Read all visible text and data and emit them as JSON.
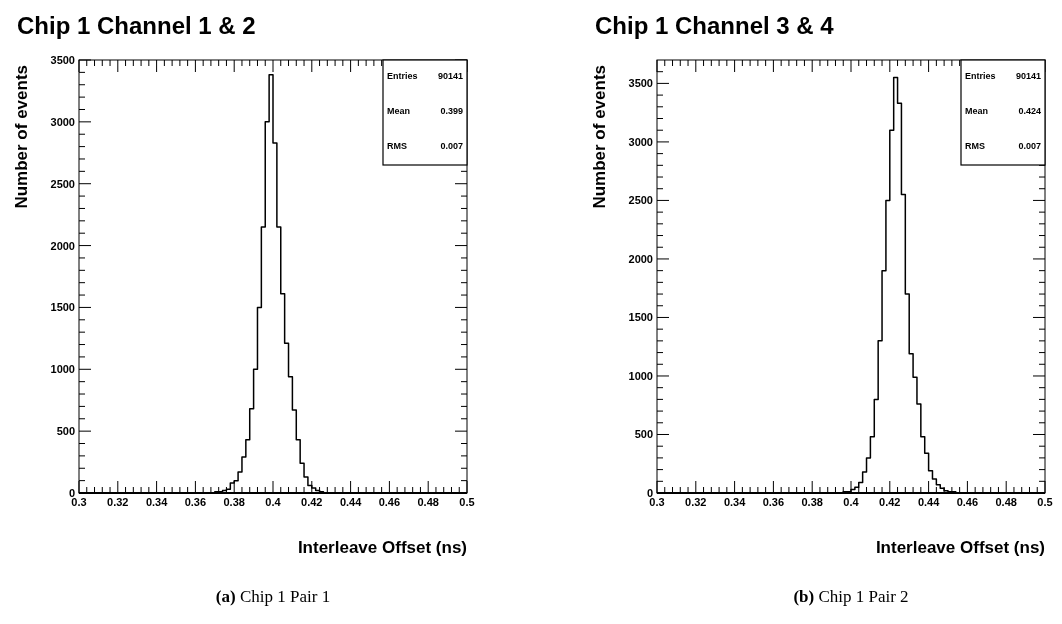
{
  "chart_data": [
    {
      "type": "histogram",
      "title": "Chip 1 Channel 1 & 2",
      "xlabel": "Interleave Offset (ns)",
      "ylabel": "Number of events",
      "color": "#000000",
      "bins": [
        0.366,
        0.368,
        0.37,
        0.372,
        0.374,
        0.376,
        0.378,
        0.38,
        0.382,
        0.384,
        0.386,
        0.388,
        0.39,
        0.392,
        0.394,
        0.396,
        0.398,
        0.4,
        0.402,
        0.404,
        0.406,
        0.408,
        0.41,
        0.412,
        0.414,
        0.416,
        0.418,
        0.42,
        0.422,
        0.424,
        0.426,
        0.428,
        0.43
      ],
      "values": [
        0,
        0,
        10,
        10,
        20,
        30,
        80,
        100,
        170,
        290,
        430,
        680,
        1000,
        1500,
        2150,
        3000,
        3380,
        2830,
        2150,
        1610,
        1210,
        940,
        670,
        430,
        240,
        130,
        60,
        40,
        20,
        10,
        0,
        0
      ],
      "xlim": [
        0.3,
        0.5
      ],
      "ylim": [
        0,
        3500
      ],
      "xticks": [
        0.3,
        0.32,
        0.34,
        0.36,
        0.38,
        0.4,
        0.42,
        0.44,
        0.46,
        0.48,
        0.5
      ],
      "yticks": [
        0,
        500,
        1000,
        1500,
        2000,
        2500,
        3000,
        3500
      ],
      "annotations": [
        "Entries",
        "90141",
        "Mean",
        "0.399",
        "RMS",
        "0.007",
        "(a) Chip 1 Pair 1"
      ]
    },
    {
      "type": "histogram",
      "title": "Chip 1 Channel 3 & 4",
      "xlabel": "Interleave Offset (ns)",
      "ylabel": "Number of events",
      "color": "#000000",
      "bins": [
        0.394,
        0.396,
        0.398,
        0.4,
        0.402,
        0.404,
        0.406,
        0.408,
        0.41,
        0.412,
        0.414,
        0.416,
        0.418,
        0.42,
        0.422,
        0.424,
        0.426,
        0.428,
        0.43,
        0.432,
        0.434,
        0.436,
        0.438,
        0.44,
        0.442,
        0.444,
        0.446,
        0.448,
        0.45,
        0.452,
        0.454,
        0.456,
        0.458
      ],
      "values": [
        0,
        10,
        10,
        30,
        50,
        90,
        180,
        300,
        480,
        800,
        1300,
        1900,
        2500,
        3100,
        3550,
        3330,
        2550,
        1700,
        1190,
        990,
        760,
        480,
        340,
        190,
        120,
        70,
        40,
        20,
        10,
        10,
        0,
        0
      ],
      "xlim": [
        0.3,
        0.5
      ],
      "ylim": [
        0,
        3700
      ],
      "xticks": [
        0.3,
        0.32,
        0.34,
        0.36,
        0.38,
        0.4,
        0.42,
        0.44,
        0.46,
        0.48,
        0.5
      ],
      "yticks": [
        0,
        500,
        1000,
        1500,
        2000,
        2500,
        3000,
        3500
      ],
      "annotations": [
        "Entries",
        "90141",
        "Mean",
        "0.424",
        "RMS",
        "0.007",
        "(b) Chip 1 Pair 2"
      ]
    }
  ]
}
